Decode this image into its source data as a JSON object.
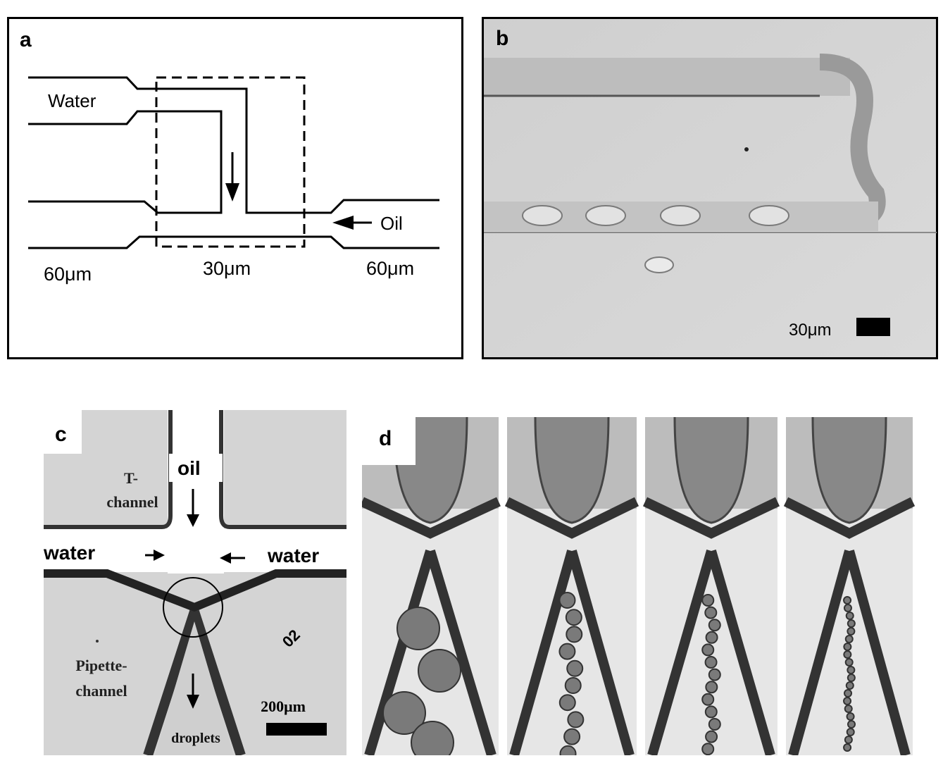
{
  "panel_a": {
    "label": "a",
    "water_label": "Water",
    "oil_label": "Oil",
    "width_left": "60μm",
    "width_center": "30μm",
    "width_right": "60μm"
  },
  "panel_b": {
    "label": "b",
    "scale_label": "30μm"
  },
  "panel_c": {
    "label": "c",
    "oil_label": "oil",
    "t_channel_line1": "T-",
    "t_channel_line2": "channel",
    "water_left": "water",
    "water_right": "water",
    "pipette_line1": "Pipette-",
    "pipette_line2": "channel",
    "scale_label": "200μm",
    "droplets_label": "droplets",
    "marker_text": "02"
  },
  "panel_d": {
    "label": "d",
    "frame_count": 4
  },
  "colors": {
    "line": "#000000",
    "micrograph_bg": "#d6d6d6",
    "photo_bg": "#e8e8e8"
  }
}
